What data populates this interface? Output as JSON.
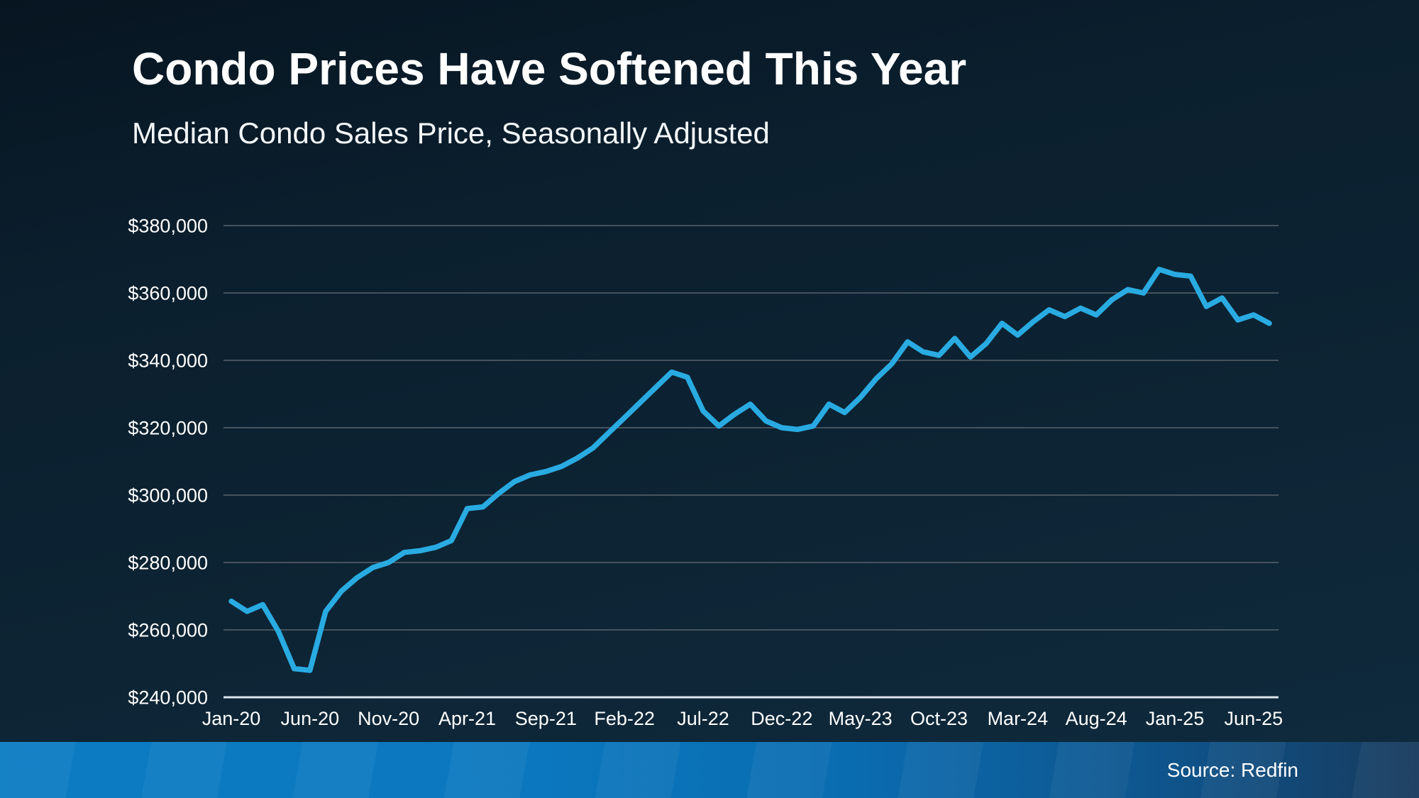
{
  "page": {
    "title": "Condo Prices Have Softened This Year",
    "subtitle": "Median Condo Sales Price, Seasonally Adjusted"
  },
  "footer": {
    "source_label": "Source: Redfin",
    "bar_gradient_left": "#0c7cc3",
    "bar_gradient_right": "#173a5c"
  },
  "colors": {
    "background_top": "#071521",
    "background_bottom": "#0f2b3e",
    "line": "#29ABE2",
    "gridline": "#59636d",
    "axis_line": "#dde4ea",
    "text": "#ffffff"
  },
  "chart_data": {
    "type": "line",
    "title": "Condo Prices Have Softened This Year",
    "subtitle": "Median Condo Sales Price, Seasonally Adjusted",
    "xlabel": "",
    "ylabel": "",
    "grid": true,
    "legend": false,
    "line_color": "#29ABE2",
    "ylim": [
      240000,
      380000
    ],
    "y_tick_step": 20000,
    "y_ticks": [
      "$380,000",
      "$360,000",
      "$340,000",
      "$320,000",
      "$300,000",
      "$280,000",
      "$260,000",
      "$240,000"
    ],
    "x_tick_every": 5,
    "x_ticks": [
      "Jan-20",
      "Jun-20",
      "Nov-20",
      "Apr-21",
      "Sep-21",
      "Feb-22",
      "Jul-22",
      "Dec-22",
      "May-23",
      "Oct-23",
      "Mar-24",
      "Aug-24",
      "Jan-25",
      "Jun-25"
    ],
    "categories": [
      "Jan-20",
      "Feb-20",
      "Mar-20",
      "Apr-20",
      "May-20",
      "Jun-20",
      "Jul-20",
      "Aug-20",
      "Sep-20",
      "Oct-20",
      "Nov-20",
      "Dec-20",
      "Jan-21",
      "Feb-21",
      "Mar-21",
      "Apr-21",
      "May-21",
      "Jun-21",
      "Jul-21",
      "Aug-21",
      "Sep-21",
      "Oct-21",
      "Nov-21",
      "Dec-21",
      "Jan-22",
      "Feb-22",
      "Mar-22",
      "Apr-22",
      "May-22",
      "Jun-22",
      "Jul-22",
      "Aug-22",
      "Sep-22",
      "Oct-22",
      "Nov-22",
      "Dec-22",
      "Jan-23",
      "Feb-23",
      "Mar-23",
      "Apr-23",
      "May-23",
      "Jun-23",
      "Jul-23",
      "Aug-23",
      "Sep-23",
      "Oct-23",
      "Nov-23",
      "Dec-23",
      "Jan-24",
      "Feb-24",
      "Mar-24",
      "Apr-24",
      "May-24",
      "Jun-24",
      "Jul-24",
      "Aug-24",
      "Sep-24",
      "Oct-24",
      "Nov-24",
      "Dec-24",
      "Jan-25",
      "Feb-25",
      "Mar-25",
      "Apr-25",
      "May-25",
      "Jun-25",
      "Jul-25"
    ],
    "values": [
      268500,
      265500,
      267500,
      259500,
      248500,
      248000,
      265500,
      271500,
      275500,
      278500,
      280000,
      283000,
      283500,
      284500,
      286500,
      296000,
      296500,
      300500,
      304000,
      306000,
      307000,
      308500,
      311000,
      314000,
      318500,
      323000,
      327500,
      332000,
      336500,
      335000,
      325000,
      320500,
      324000,
      327000,
      322000,
      320000,
      319500,
      320500,
      327000,
      324500,
      329000,
      334500,
      339000,
      345500,
      342500,
      341500,
      346500,
      341000,
      345000,
      351000,
      347500,
      351500,
      355000,
      353000,
      355500,
      353500,
      358000,
      361000,
      360000,
      367000,
      365500,
      365000,
      356000,
      358500,
      352000,
      353500,
      351000
    ]
  }
}
